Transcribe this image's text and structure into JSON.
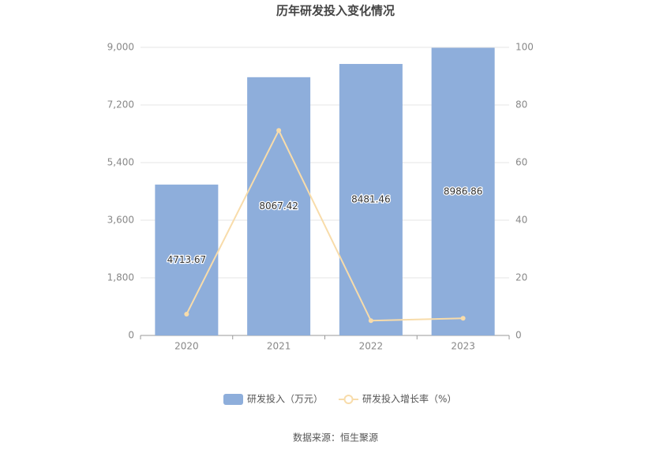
{
  "chart_data": {
    "type": "bar_line",
    "title": "历年研发投入变化情况",
    "categories": [
      "2020",
      "2021",
      "2022",
      "2023"
    ],
    "series": [
      {
        "name": "研发投入（万元）",
        "type": "bar",
        "color": "#8eaedb",
        "values": [
          4713.67,
          8067.42,
          8481.46,
          8986.86
        ]
      },
      {
        "name": "研发投入增长率（%）",
        "type": "line",
        "axis": "y2",
        "color": "#f8dcaa",
        "values": [
          7.4,
          71.15,
          5.13,
          5.96
        ]
      }
    ],
    "ylim": [
      0,
      9000
    ],
    "yticks": [
      0,
      {
        "value": 1800,
        "label": "1,800"
      },
      {
        "value": 3600,
        "label": "3,600"
      },
      {
        "value": 5400,
        "label": "5,400"
      },
      {
        "value": 7200,
        "label": "7,200"
      },
      {
        "value": 9000,
        "label": "9,000"
      }
    ],
    "y2lim": [
      0,
      100
    ],
    "y2ticks": [
      0,
      20,
      40,
      60,
      80,
      100
    ],
    "grid": true,
    "legend": "bottom",
    "source": "数据来源：恒生聚源"
  }
}
